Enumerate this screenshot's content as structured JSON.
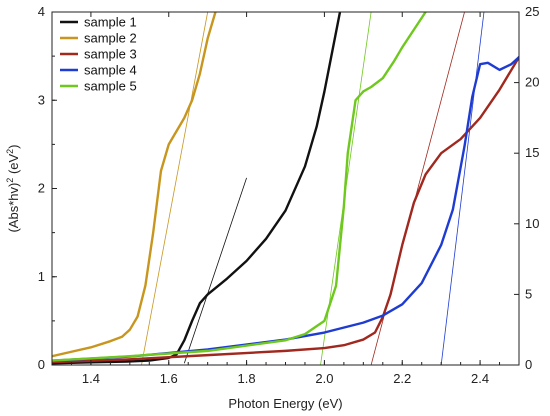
{
  "chart_data": {
    "type": "line",
    "xlabel": "Photon Energy (eV)",
    "ylabel_left": {
      "base": "(Abs*hv)",
      "sup1": "2",
      "unit": " (eV",
      "sup2": "2",
      "close": ")"
    },
    "xlim": [
      1.3,
      2.5
    ],
    "ylim_left": [
      0,
      4
    ],
    "ylim_right": [
      0,
      25
    ],
    "x_ticks": [
      "1.4",
      "1.6",
      "1.8",
      "2.0",
      "2.2",
      "2.4"
    ],
    "x_tick_values": [
      1.4,
      1.6,
      1.8,
      2.0,
      2.2,
      2.4
    ],
    "y_left_ticks": [
      "0",
      "1",
      "2",
      "3",
      "4"
    ],
    "y_left_tick_values": [
      0,
      1,
      2,
      3,
      4
    ],
    "y_right_ticks": [
      "0",
      "5",
      "10",
      "15",
      "20",
      "25"
    ],
    "y_right_tick_values": [
      0,
      5,
      10,
      15,
      20,
      25
    ],
    "grid": false,
    "legend_position": "top-left",
    "series": [
      {
        "name": "sample 1",
        "color": "#111111",
        "axis": "left",
        "x": [
          1.3,
          1.4,
          1.5,
          1.55,
          1.6,
          1.62,
          1.64,
          1.66,
          1.68,
          1.7,
          1.75,
          1.8,
          1.85,
          1.9,
          1.95,
          1.98,
          2.0,
          2.02,
          2.04
        ],
        "y": [
          0.02,
          0.03,
          0.04,
          0.05,
          0.08,
          0.12,
          0.28,
          0.5,
          0.7,
          0.8,
          0.98,
          1.18,
          1.43,
          1.75,
          2.25,
          2.7,
          3.1,
          3.55,
          4.0
        ],
        "tangent": [
          [
            1.64,
            0.02
          ],
          [
            1.8,
            2.12
          ]
        ]
      },
      {
        "name": "sample 2",
        "color": "#c8961e",
        "axis": "left",
        "x": [
          1.3,
          1.35,
          1.4,
          1.45,
          1.48,
          1.5,
          1.52,
          1.54,
          1.56,
          1.58,
          1.6,
          1.62,
          1.64,
          1.66,
          1.68,
          1.7,
          1.72
        ],
        "y": [
          0.1,
          0.15,
          0.2,
          0.27,
          0.32,
          0.4,
          0.55,
          0.9,
          1.5,
          2.2,
          2.5,
          2.65,
          2.8,
          3.0,
          3.3,
          3.7,
          4.0
        ],
        "tangent": [
          [
            1.53,
            0.0
          ],
          [
            1.7,
            4.0
          ]
        ]
      },
      {
        "name": "sample 3",
        "color": "#a0281e",
        "axis": "right",
        "x": [
          1.3,
          1.5,
          1.7,
          1.9,
          2.0,
          2.05,
          2.1,
          2.13,
          2.15,
          2.17,
          2.2,
          2.23,
          2.26,
          2.3,
          2.35,
          2.4,
          2.45,
          2.5
        ],
        "y": [
          0.2,
          0.4,
          0.7,
          1.0,
          1.2,
          1.4,
          1.8,
          2.3,
          3.4,
          5.0,
          8.5,
          11.5,
          13.5,
          15.0,
          16.0,
          17.5,
          19.5,
          21.8
        ],
        "tangent": [
          [
            2.12,
            0.0
          ],
          [
            2.36,
            25.0
          ]
        ]
      },
      {
        "name": "sample 4",
        "color": "#1e3cd2",
        "axis": "right",
        "x": [
          1.3,
          1.5,
          1.7,
          1.9,
          2.0,
          2.1,
          2.15,
          2.2,
          2.25,
          2.3,
          2.33,
          2.36,
          2.38,
          2.4,
          2.42,
          2.45,
          2.48,
          2.5
        ],
        "y": [
          0.3,
          0.6,
          1.1,
          1.8,
          2.3,
          3.0,
          3.5,
          4.3,
          5.8,
          8.5,
          11.0,
          15.5,
          19.0,
          21.3,
          21.4,
          20.9,
          21.3,
          21.8
        ],
        "tangent": [
          [
            2.3,
            0.0
          ],
          [
            2.41,
            25.0
          ]
        ]
      },
      {
        "name": "sample 5",
        "color": "#6ec81e",
        "axis": "left",
        "x": [
          1.3,
          1.5,
          1.7,
          1.9,
          1.95,
          2.0,
          2.03,
          2.05,
          2.06,
          2.08,
          2.1,
          2.12,
          2.15,
          2.18,
          2.2,
          2.23,
          2.26
        ],
        "y": [
          0.05,
          0.1,
          0.16,
          0.28,
          0.35,
          0.5,
          0.9,
          1.8,
          2.4,
          3.0,
          3.1,
          3.15,
          3.25,
          3.45,
          3.6,
          3.8,
          4.0
        ],
        "tangent": [
          [
            1.99,
            0.0
          ],
          [
            2.12,
            4.0
          ]
        ]
      }
    ]
  }
}
